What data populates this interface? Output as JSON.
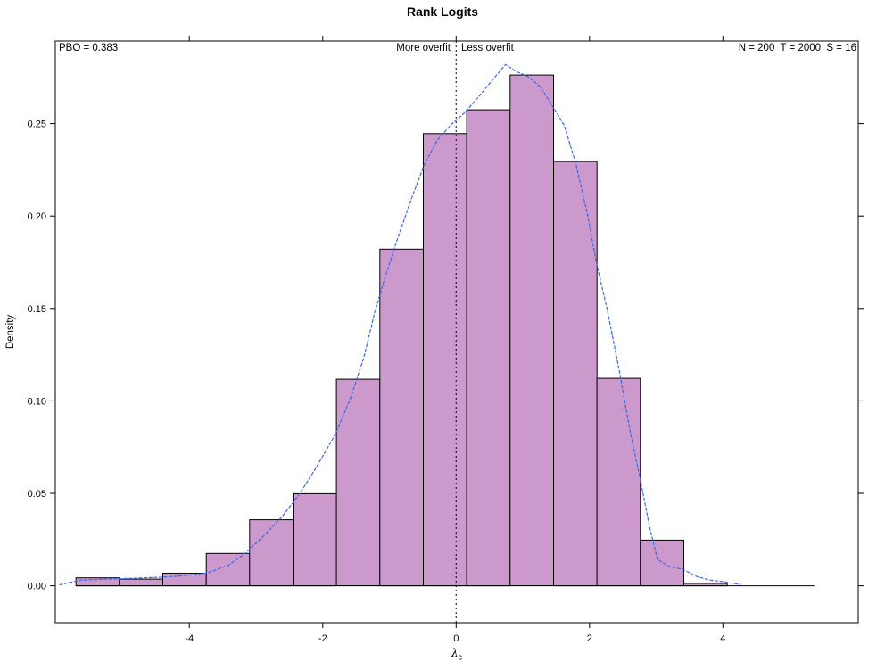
{
  "title": "Rank Logits",
  "annotations": {
    "pbo": "PBO = 0.383",
    "more_overfit": "More overfit",
    "less_overfit": "Less overfit",
    "params": "N = 200  T = 2000  S = 16"
  },
  "axes": {
    "ylabel": "Density",
    "xlabel_symbol": "λ",
    "xlabel_subscript": "c"
  },
  "colors": {
    "bar_fill": "#CC99CC",
    "bar_stroke": "#000000",
    "curve": "#4169E1",
    "axis": "#000000",
    "text": "#000000",
    "reference_line": "#000000",
    "background": "#FFFFFF"
  },
  "chart_data": {
    "type": "bar",
    "subtype": "histogram-with-density-curve",
    "title": "Rank Logits",
    "xlabel": "lambda_c",
    "ylabel": "Density",
    "grid": false,
    "legend": "none",
    "xlim": [
      -6.01,
      6.03
    ],
    "ylim": [
      -0.02,
      0.2947
    ],
    "x_ticks": {
      "values": [
        -4,
        -2,
        0,
        2,
        4
      ],
      "labels": [
        "-4",
        "-2",
        "0",
        "2",
        "4"
      ]
    },
    "y_ticks": {
      "values": [
        0,
        0.05,
        0.1,
        0.15,
        0.2,
        0.25
      ],
      "labels": [
        "0.00",
        "0.05",
        "0.10",
        "0.15",
        "0.20",
        "0.25"
      ]
    },
    "histogram": {
      "bin_start": -5.7,
      "bin_width": 0.651,
      "densities": [
        0.0043,
        0.0036,
        0.0068,
        0.0175,
        0.0357,
        0.0498,
        0.1117,
        0.1821,
        0.2446,
        0.2575,
        0.2763,
        0.2295,
        0.1122,
        0.0247,
        0.0013
      ],
      "baseline_end": 5.37
    },
    "density_curve": [
      [
        -5.95,
        0.0005
      ],
      [
        -5.63,
        0.003
      ],
      [
        -5.23,
        0.0036
      ],
      [
        -4.83,
        0.0041
      ],
      [
        -4.43,
        0.0046
      ],
      [
        -4.03,
        0.0056
      ],
      [
        -3.73,
        0.007
      ],
      [
        -3.42,
        0.0109
      ],
      [
        -3.16,
        0.0176
      ],
      [
        -2.89,
        0.0268
      ],
      [
        -2.62,
        0.0369
      ],
      [
        -2.35,
        0.0495
      ],
      [
        -2.09,
        0.0644
      ],
      [
        -1.82,
        0.0813
      ],
      [
        -1.59,
        0.1007
      ],
      [
        -1.38,
        0.1239
      ],
      [
        -1.22,
        0.148
      ],
      [
        -1.06,
        0.1673
      ],
      [
        -0.88,
        0.1876
      ],
      [
        -0.68,
        0.2083
      ],
      [
        -0.48,
        0.2276
      ],
      [
        -0.28,
        0.2411
      ],
      [
        -0.08,
        0.2493
      ],
      [
        0.12,
        0.2556
      ],
      [
        0.32,
        0.2638
      ],
      [
        0.52,
        0.2725
      ],
      [
        0.74,
        0.282
      ],
      [
        0.9,
        0.2783
      ],
      [
        1.08,
        0.2754
      ],
      [
        1.26,
        0.2701
      ],
      [
        1.43,
        0.2604
      ],
      [
        1.62,
        0.2493
      ],
      [
        1.79,
        0.229
      ],
      [
        1.97,
        0.201
      ],
      [
        2.1,
        0.1755
      ],
      [
        2.26,
        0.1504
      ],
      [
        2.46,
        0.1141
      ],
      [
        2.6,
        0.0852
      ],
      [
        2.76,
        0.0577
      ],
      [
        2.9,
        0.0321
      ],
      [
        3.02,
        0.0142
      ],
      [
        3.2,
        0.0104
      ],
      [
        3.4,
        0.0089
      ],
      [
        3.6,
        0.0051
      ],
      [
        3.8,
        0.0031
      ],
      [
        4.0,
        0.0022
      ],
      [
        4.16,
        0.0012
      ],
      [
        4.27,
        0.0007
      ]
    ],
    "reference_vline_x": 0,
    "annotations": {
      "pbo_value": 0.383,
      "n": 200,
      "t": 2000,
      "s": 16
    }
  }
}
